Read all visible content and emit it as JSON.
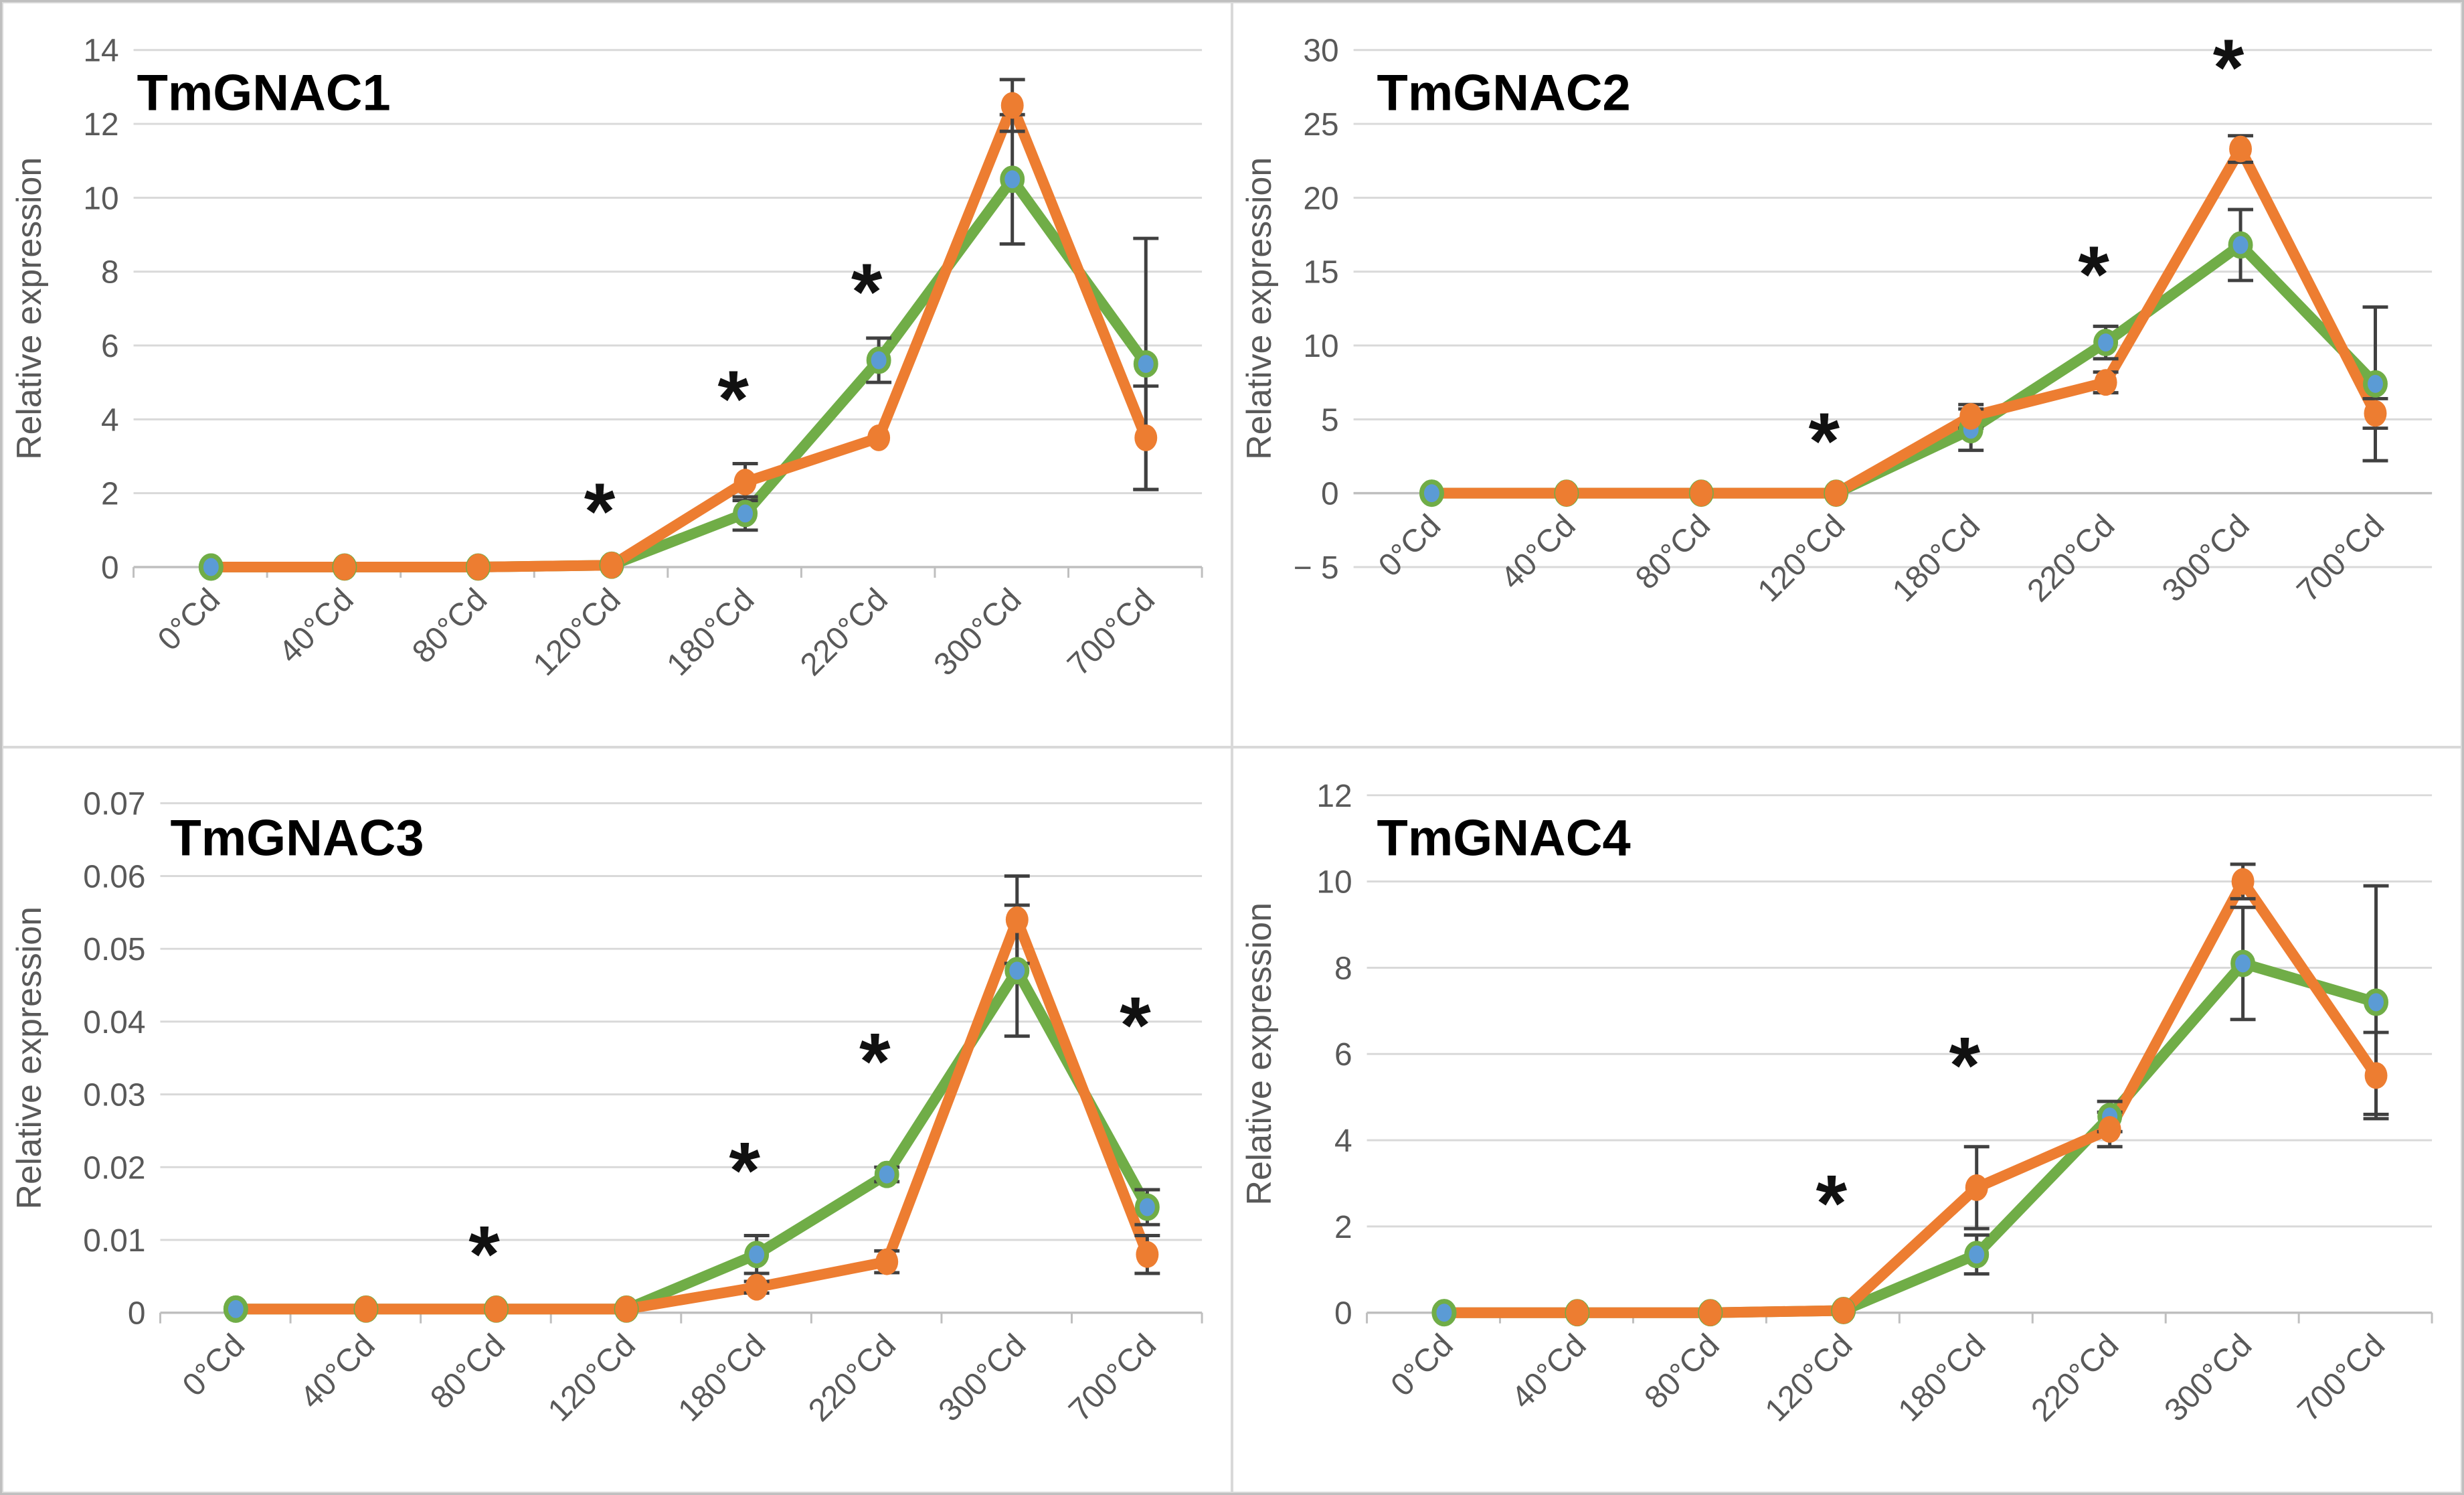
{
  "figure": {
    "description": "Four-panel relative expression line charts",
    "colors": {
      "series_green": "#70AD47",
      "series_orange": "#ED7D31",
      "marker_blue": "#5B9BD5",
      "error_bar": "#404040",
      "gridline": "#D9D9D9",
      "axis_line": "#BFBFBF",
      "tick_label": "#595959",
      "title": "#000000",
      "asterisk": "#111111"
    }
  },
  "chart_data": [
    {
      "type": "line",
      "title": "TmGNAC1",
      "ylabel": "Relative expression",
      "categories": [
        "0°Cd",
        "40°Cd",
        "80°Cd",
        "120°Cd",
        "180°Cd",
        "220°Cd",
        "300°Cd",
        "700°Cd"
      ],
      "ylim": [
        0,
        14
      ],
      "yticks": [
        0,
        2,
        4,
        6,
        8,
        10,
        12,
        14
      ],
      "ytick_labels": [
        "0",
        "2",
        "4",
        "6",
        "8",
        "10",
        "12",
        "14"
      ],
      "grid": true,
      "legend": "none",
      "xlabel": "",
      "series": [
        {
          "name": "green",
          "color": "#70AD47",
          "marker_fill": "#5B9BD5",
          "values": [
            0,
            0,
            0,
            0.05,
            1.45,
            5.6,
            10.5,
            5.5
          ],
          "err_up": [
            0,
            0,
            0,
            0,
            0.45,
            0.6,
            1.75,
            3.4
          ],
          "err_down": [
            0,
            0,
            0,
            0,
            0.45,
            0.6,
            1.75,
            3.4
          ]
        },
        {
          "name": "orange",
          "color": "#ED7D31",
          "marker_fill": "#ED7D31",
          "values": [
            0,
            0,
            0,
            0.05,
            2.3,
            3.5,
            12.5,
            3.5
          ],
          "err_up": [
            0,
            0,
            0,
            0,
            0.5,
            0,
            0.7,
            1.4
          ],
          "err_down": [
            0,
            0,
            0,
            0,
            0.5,
            0,
            0.7,
            1.4
          ]
        }
      ],
      "asterisks": [
        {
          "category": "120°Cd",
          "value": 1.7
        },
        {
          "category": "180°Cd",
          "value": 4.75
        },
        {
          "category": "220°Cd",
          "value": 7.65
        }
      ]
    },
    {
      "type": "line",
      "title": "TmGNAC2",
      "ylabel": "Relative expression",
      "categories": [
        "0°Cd",
        "40°Cd",
        "80°Cd",
        "120°Cd",
        "180°Cd",
        "220°Cd",
        "300°Cd",
        "700°Cd"
      ],
      "ylim": [
        -5,
        30
      ],
      "yticks": [
        -5,
        0,
        5,
        10,
        15,
        20,
        25,
        30
      ],
      "ytick_labels": [
        "− 5",
        "0",
        "5",
        "10",
        "15",
        "20",
        "25",
        "30"
      ],
      "grid": true,
      "legend": "none",
      "xlabel": "",
      "xlabels_at_zero": true,
      "series": [
        {
          "name": "green",
          "color": "#70AD47",
          "marker_fill": "#5B9BD5",
          "values": [
            0,
            0,
            0,
            0,
            4.3,
            10.2,
            16.8,
            7.4
          ],
          "err_up": [
            0,
            0,
            0,
            0,
            1.4,
            1.1,
            2.4,
            5.2
          ],
          "err_down": [
            0,
            0,
            0,
            0,
            1.4,
            1.1,
            2.4,
            5.2
          ]
        },
        {
          "name": "orange",
          "color": "#ED7D31",
          "marker_fill": "#ED7D31",
          "values": [
            0,
            0,
            0,
            0,
            5.2,
            7.5,
            23.3,
            5.4
          ],
          "err_up": [
            0,
            0,
            0,
            0,
            0.8,
            0.7,
            0.9,
            1.0
          ],
          "err_down": [
            0,
            0,
            0,
            0,
            0.8,
            0.7,
            0.9,
            1.0
          ]
        }
      ],
      "asterisks": [
        {
          "category": "120°Cd",
          "value": 4.0
        },
        {
          "category": "220°Cd",
          "value": 15.3
        },
        {
          "category": "300°Cd",
          "value": 29.3
        }
      ]
    },
    {
      "type": "line",
      "title": "TmGNAC3",
      "ylabel": "Relative expression",
      "categories": [
        "0°Cd",
        "40°Cd",
        "80°Cd",
        "120°Cd",
        "180°Cd",
        "220°Cd",
        "300°Cd",
        "700°Cd"
      ],
      "ylim": [
        0,
        0.07
      ],
      "yticks": [
        0,
        0.01,
        0.02,
        0.03,
        0.04,
        0.05,
        0.06,
        0.07
      ],
      "ytick_labels": [
        "0",
        "0.01",
        "0.02",
        "0.03",
        "0.04",
        "0.05",
        "0.06",
        "0.07"
      ],
      "grid": true,
      "legend": "none",
      "xlabel": "",
      "series": [
        {
          "name": "green",
          "color": "#70AD47",
          "marker_fill": "#5B9BD5",
          "values": [
            0.0005,
            0.0005,
            0.0005,
            0.0005,
            0.008,
            0.019,
            0.047,
            0.0145
          ],
          "err_up": [
            0,
            0,
            0,
            0,
            0.0026,
            0.001,
            0.009,
            0.0024
          ],
          "err_down": [
            0,
            0,
            0,
            0,
            0.0026,
            0.001,
            0.009,
            0.0024
          ]
        },
        {
          "name": "orange",
          "color": "#ED7D31",
          "marker_fill": "#ED7D31",
          "values": [
            0.0005,
            0.0005,
            0.0005,
            0.0005,
            0.0035,
            0.007,
            0.054,
            0.008
          ],
          "err_up": [
            0,
            0,
            0,
            0,
            0.0008,
            0.0015,
            0.006,
            0.0026
          ],
          "err_down": [
            0,
            0,
            0,
            0,
            0.0008,
            0.0015,
            0.006,
            0.0026
          ]
        }
      ],
      "asterisks": [
        {
          "category": "80°Cd",
          "value": 0.009
        },
        {
          "category": "180°Cd",
          "value": 0.0205
        },
        {
          "category": "220°Cd",
          "value": 0.0355
        },
        {
          "category": "700°Cd",
          "value": 0.0405
        }
      ]
    },
    {
      "type": "line",
      "title": "TmGNAC4",
      "ylabel": "Relative expression",
      "categories": [
        "0°Cd",
        "40°Cd",
        "80°Cd",
        "120°Cd",
        "180°Cd",
        "220°Cd",
        "300°Cd",
        "700°Cd"
      ],
      "ylim": [
        0,
        12
      ],
      "yticks": [
        0,
        2,
        4,
        6,
        8,
        10,
        12
      ],
      "ytick_labels": [
        "0",
        "2",
        "4",
        "6",
        "8",
        "10",
        "12"
      ],
      "grid": true,
      "legend": "none",
      "xlabel": "",
      "series": [
        {
          "name": "green",
          "color": "#70AD47",
          "marker_fill": "#5B9BD5",
          "values": [
            0,
            0,
            0,
            0.05,
            1.35,
            4.55,
            8.1,
            7.2
          ],
          "err_up": [
            0,
            0,
            0,
            0,
            0.45,
            0.35,
            1.3,
            2.7
          ],
          "err_down": [
            0,
            0,
            0,
            0,
            0.45,
            0.35,
            1.3,
            2.6
          ]
        },
        {
          "name": "orange",
          "color": "#ED7D31",
          "marker_fill": "#ED7D31",
          "values": [
            0,
            0,
            0,
            0.05,
            2.9,
            4.25,
            10.0,
            5.5
          ],
          "err_up": [
            0,
            0,
            0,
            0,
            0.95,
            0.4,
            0.4,
            1.0
          ],
          "err_down": [
            0,
            0,
            0,
            0,
            0.95,
            0.4,
            0.4,
            1.0
          ]
        }
      ],
      "asterisks": [
        {
          "category": "120°Cd",
          "value": 2.7
        },
        {
          "category": "180°Cd",
          "value": 5.9
        }
      ]
    }
  ]
}
